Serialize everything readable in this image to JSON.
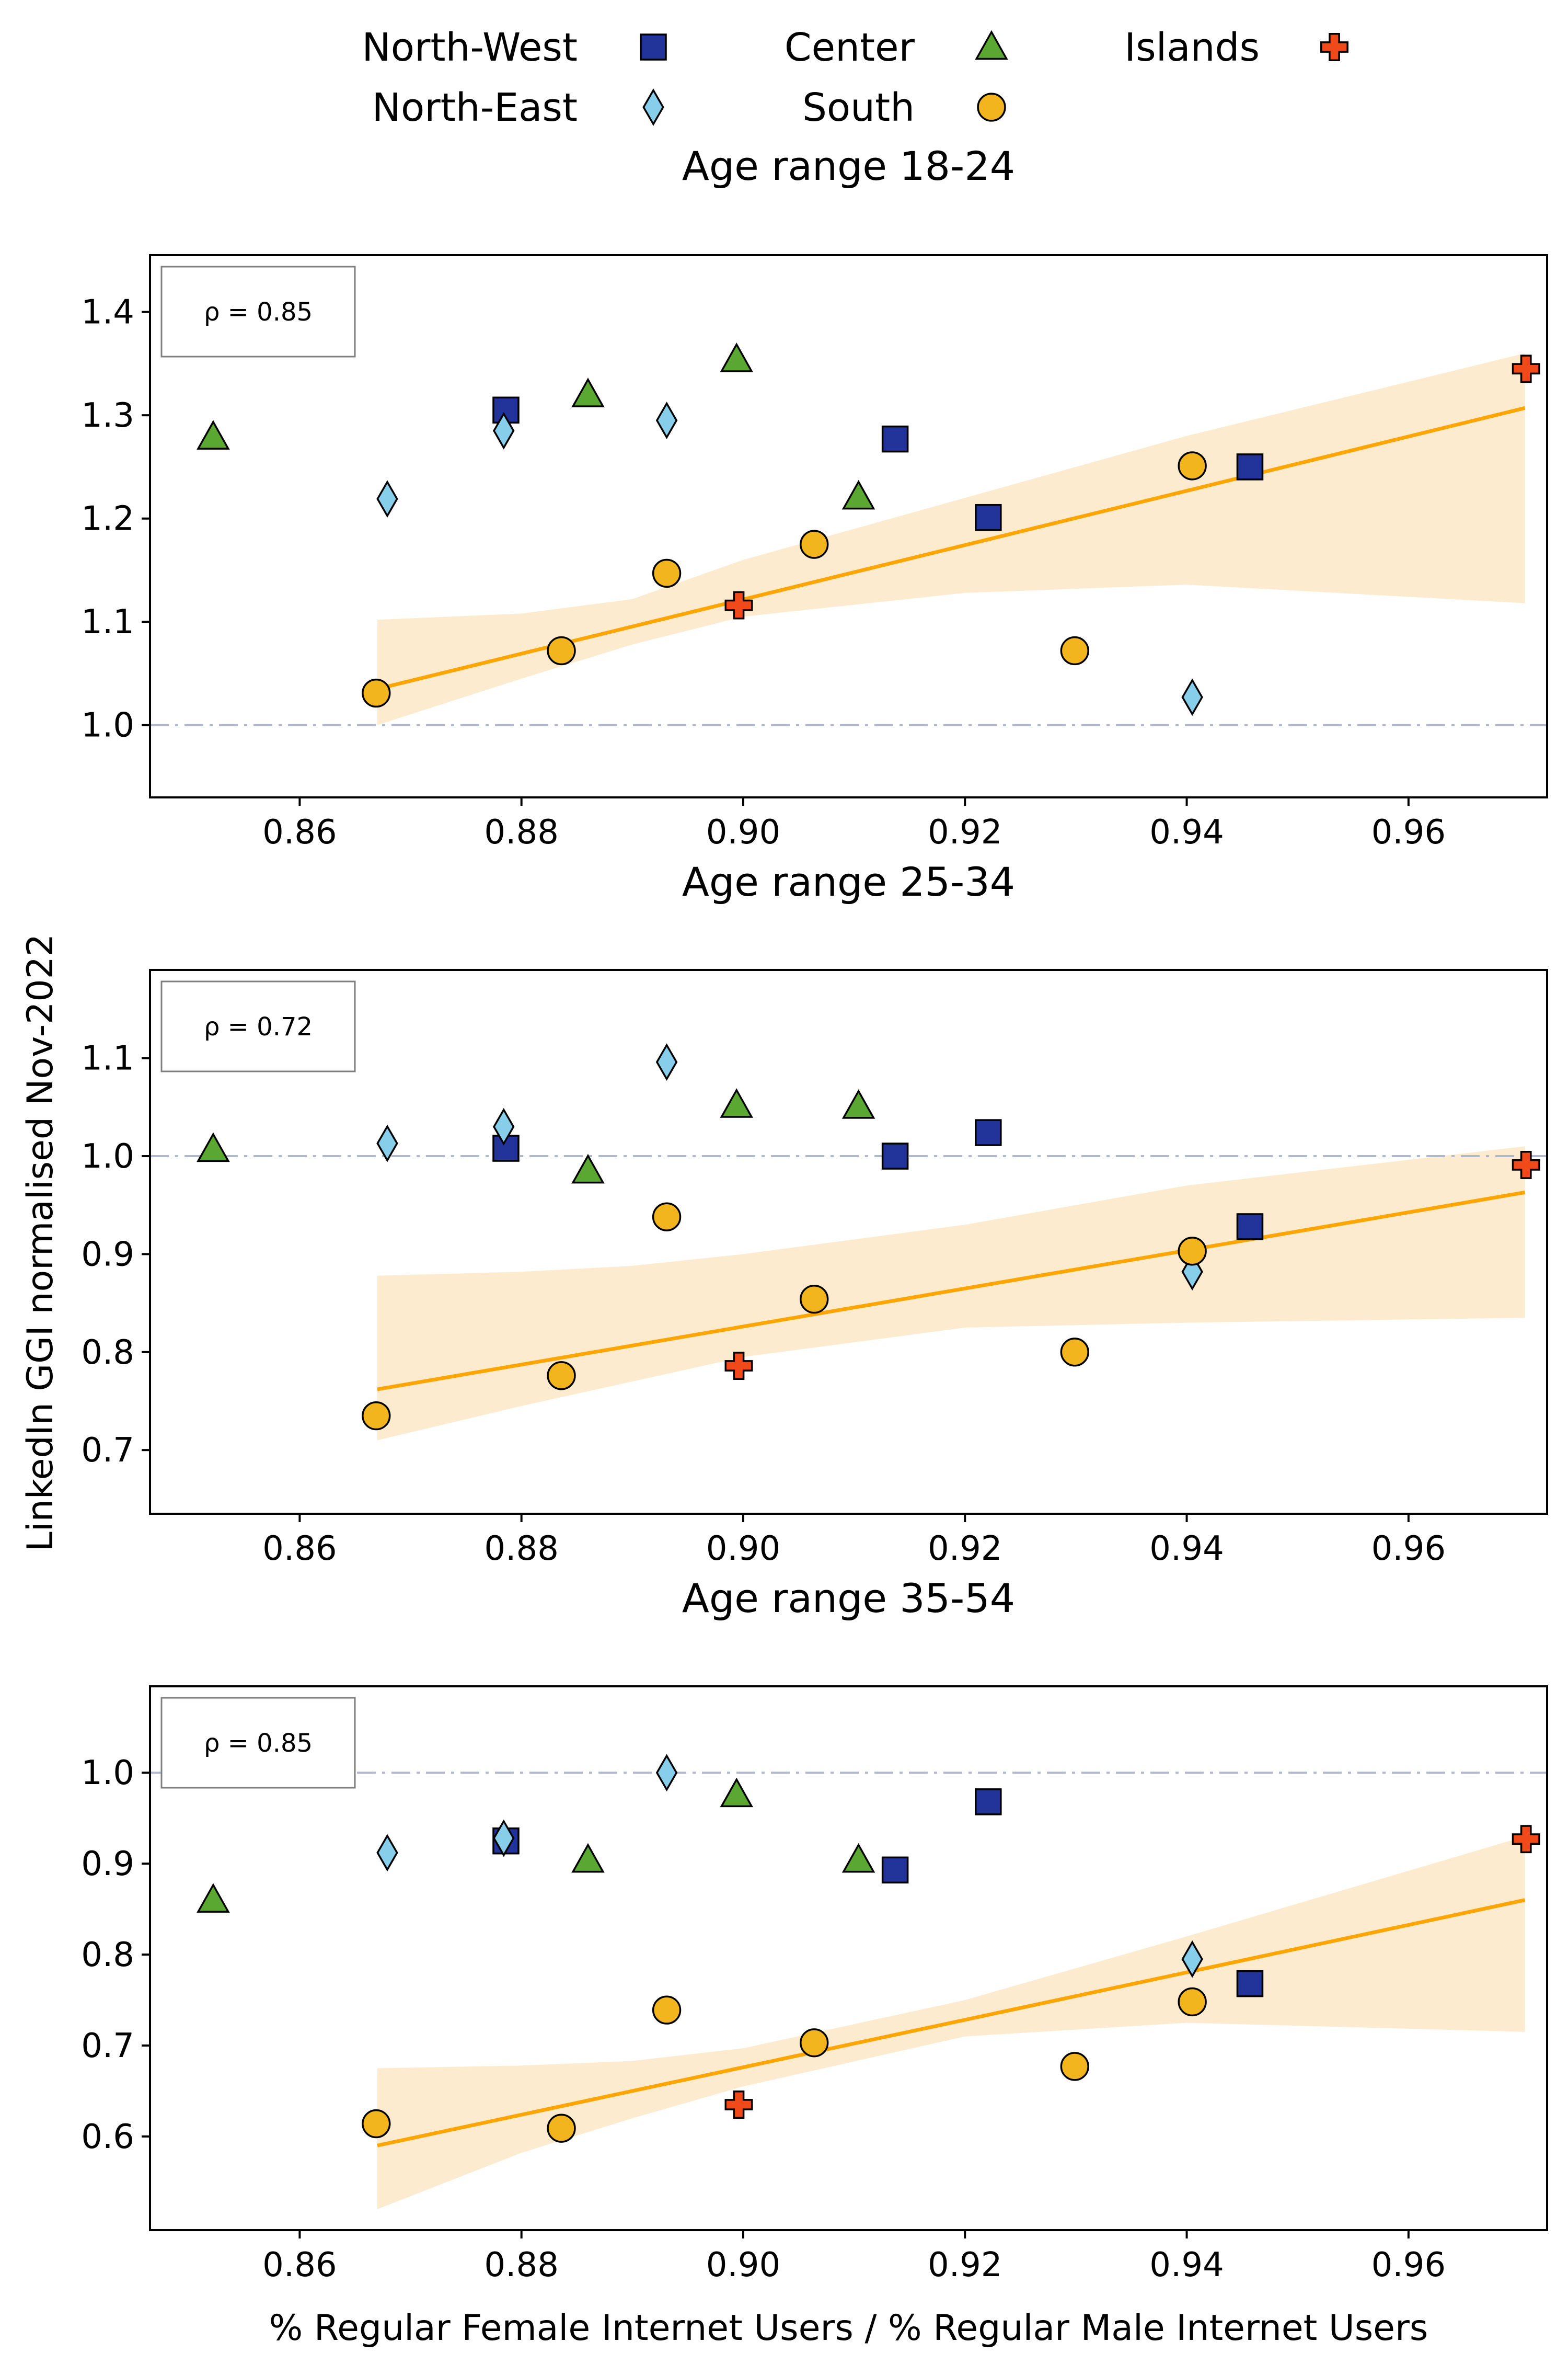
{
  "chart_data": {
    "type": "scatter",
    "xlabel": "% Regular Female Internet Users / % Regular Male Internet Users",
    "ylabel": "LinkedIn GGI normalised Nov-2022",
    "xlim": [
      0.8465,
      0.9725
    ],
    "xticks": [
      "0.86",
      "0.88",
      "0.90",
      "0.92",
      "0.94",
      "0.96"
    ],
    "legend": {
      "placement": "top-center",
      "entries": [
        {
          "name": "North-West",
          "marker": "square",
          "color": "#22349a"
        },
        {
          "name": "North-East",
          "marker": "diamond",
          "color": "#87ceeb"
        },
        {
          "name": "Center",
          "marker": "triangle",
          "color": "#5aa832"
        },
        {
          "name": "South",
          "marker": "circle",
          "color": "#f2b51d"
        },
        {
          "name": "Islands",
          "marker": "plus",
          "color": "#f04a1a"
        }
      ]
    },
    "colors": {
      "fit_line": "#ffa500",
      "confidence_band": "#fdebd0",
      "reference_line": "#b0b8d0"
    },
    "panels": [
      {
        "title": "Age range 18-24",
        "annotation": "ρ = 0.85",
        "ylim": [
          0.93,
          1.455
        ],
        "yticks": [
          "1.0",
          "1.1",
          "1.2",
          "1.3",
          "1.4"
        ],
        "reference_y": 1.0,
        "fit": {
          "x": [
            0.867,
            0.9705
          ],
          "y": [
            1.035,
            1.307
          ]
        },
        "band": {
          "x": [
            0.867,
            0.88,
            0.89,
            0.9,
            0.92,
            0.94,
            0.9705
          ],
          "upper": [
            1.102,
            1.108,
            1.122,
            1.16,
            1.22,
            1.28,
            1.36
          ],
          "lower": [
            1.0,
            1.045,
            1.078,
            1.105,
            1.128,
            1.136,
            1.118
          ]
        },
        "series": [
          {
            "name": "North-West",
            "points": [
              [
                0.8786,
                1.305
              ],
              [
                0.9137,
                1.277
              ],
              [
                0.9221,
                1.201
              ],
              [
                0.9457,
                1.25
              ]
            ]
          },
          {
            "name": "North-East",
            "points": [
              [
                0.8679,
                1.219
              ],
              [
                0.8784,
                1.285
              ],
              [
                0.8931,
                1.295
              ],
              [
                0.9405,
                1.027
              ]
            ]
          },
          {
            "name": "Center",
            "points": [
              [
                0.8522,
                1.279
              ],
              [
                0.886,
                1.32
              ],
              [
                0.8994,
                1.354
              ],
              [
                0.9104,
                1.221
              ]
            ]
          },
          {
            "name": "South",
            "points": [
              [
                0.8669,
                1.031
              ],
              [
                0.8836,
                1.072
              ],
              [
                0.8931,
                1.147
              ],
              [
                0.9064,
                1.175
              ],
              [
                0.9299,
                1.072
              ],
              [
                0.9405,
                1.251
              ]
            ]
          },
          {
            "name": "Islands",
            "points": [
              [
                0.8996,
                1.116
              ],
              [
                0.9706,
                1.345
              ]
            ]
          }
        ]
      },
      {
        "title": "Age range 25-34",
        "annotation": "ρ = 0.72",
        "ylim": [
          0.635,
          1.19
        ],
        "yticks": [
          "0.7",
          "0.8",
          "0.9",
          "1.0",
          "1.1"
        ],
        "reference_y": 1.0,
        "fit": {
          "x": [
            0.867,
            0.9705
          ],
          "y": [
            0.762,
            0.963
          ]
        },
        "band": {
          "x": [
            0.867,
            0.88,
            0.89,
            0.9,
            0.92,
            0.94,
            0.9705
          ],
          "upper": [
            0.878,
            0.882,
            0.888,
            0.9,
            0.93,
            0.97,
            1.01
          ],
          "lower": [
            0.71,
            0.745,
            0.77,
            0.795,
            0.825,
            0.83,
            0.835
          ]
        },
        "series": [
          {
            "name": "North-West",
            "points": [
              [
                0.8786,
                1.008
              ],
              [
                0.9137,
                1.0
              ],
              [
                0.9221,
                1.024
              ],
              [
                0.9457,
                0.928
              ]
            ]
          },
          {
            "name": "North-East",
            "points": [
              [
                0.8679,
                1.013
              ],
              [
                0.8784,
                1.03
              ],
              [
                0.8931,
                1.096
              ],
              [
                0.9405,
                0.882
              ]
            ]
          },
          {
            "name": "Center",
            "points": [
              [
                0.8522,
                1.007
              ],
              [
                0.886,
                0.985
              ],
              [
                0.8994,
                1.052
              ],
              [
                0.9104,
                1.051
              ]
            ]
          },
          {
            "name": "South",
            "points": [
              [
                0.8669,
                0.735
              ],
              [
                0.8836,
                0.776
              ],
              [
                0.8931,
                0.938
              ],
              [
                0.9064,
                0.854
              ],
              [
                0.9299,
                0.8
              ],
              [
                0.9405,
                0.903
              ]
            ]
          },
          {
            "name": "Islands",
            "points": [
              [
                0.8996,
                0.786
              ],
              [
                0.9706,
                0.991
              ]
            ]
          }
        ]
      },
      {
        "title": "Age range 35-54",
        "annotation": "ρ = 0.85",
        "ylim": [
          0.497,
          1.095
        ],
        "yticks": [
          "0.6",
          "0.7",
          "0.8",
          "0.9",
          "1.0"
        ],
        "reference_y": 1.0,
        "fit": {
          "x": [
            0.867,
            0.9705
          ],
          "y": [
            0.59,
            0.86
          ]
        },
        "band": {
          "x": [
            0.867,
            0.88,
            0.89,
            0.9,
            0.92,
            0.94,
            0.9705
          ],
          "upper": [
            0.675,
            0.678,
            0.683,
            0.697,
            0.75,
            0.82,
            0.93
          ],
          "lower": [
            0.52,
            0.582,
            0.62,
            0.655,
            0.71,
            0.725,
            0.715
          ]
        },
        "series": [
          {
            "name": "North-West",
            "points": [
              [
                0.8786,
                0.925
              ],
              [
                0.9137,
                0.893
              ],
              [
                0.9221,
                0.968
              ],
              [
                0.9457,
                0.768
              ]
            ]
          },
          {
            "name": "North-East",
            "points": [
              [
                0.8679,
                0.912
              ],
              [
                0.8784,
                0.928
              ],
              [
                0.8931,
                1.0
              ],
              [
                0.9405,
                0.795
              ]
            ]
          },
          {
            "name": "Center",
            "points": [
              [
                0.8522,
                0.86
              ],
              [
                0.886,
                0.904
              ],
              [
                0.8994,
                0.976
              ],
              [
                0.9104,
                0.904
              ]
            ]
          },
          {
            "name": "South",
            "points": [
              [
                0.8669,
                0.614
              ],
              [
                0.8836,
                0.609
              ],
              [
                0.8931,
                0.739
              ],
              [
                0.9064,
                0.703
              ],
              [
                0.9299,
                0.677
              ],
              [
                0.9405,
                0.748
              ]
            ]
          },
          {
            "name": "Islands",
            "points": [
              [
                0.8996,
                0.635
              ],
              [
                0.9706,
                0.927
              ]
            ]
          }
        ]
      }
    ]
  }
}
